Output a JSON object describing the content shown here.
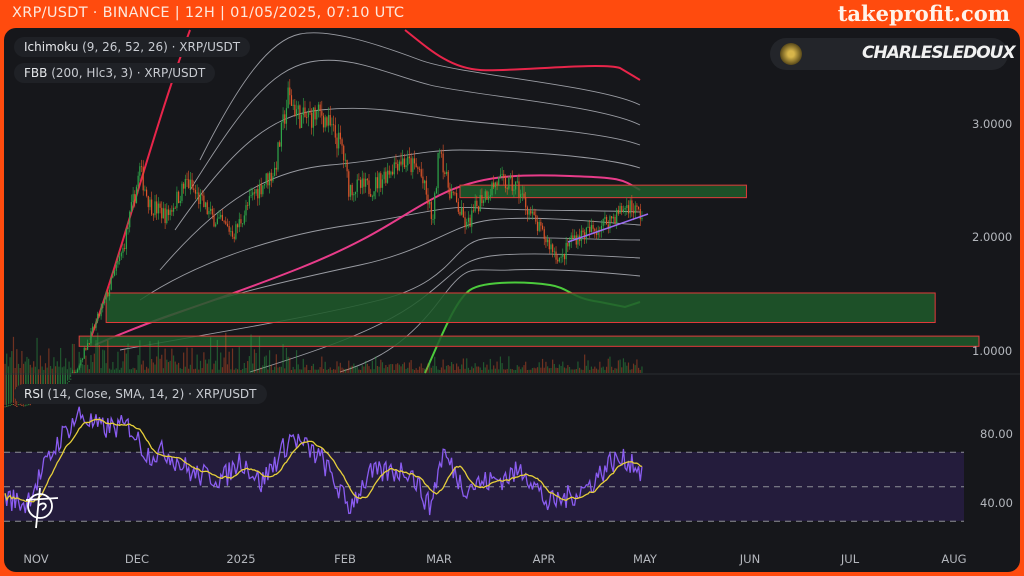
{
  "header": {
    "title": "XRP/USDT · BINANCE | 12H | 01/05/2025, 07:10 UTC",
    "brand": "takeprofit.com"
  },
  "author": {
    "name": "CHARLESLEDOUX"
  },
  "legends": {
    "ichimoku": {
      "name": "Ichimoku",
      "params": "(9, 26, 52, 26) · XRP/USDT"
    },
    "fbb": {
      "name": "FBB",
      "params": "(200, Hlc3, 3) · XRP/USDT"
    },
    "rsi": {
      "name": "RSI",
      "params": "(14, Close, SMA, 14, 2) · XRP/USDT"
    }
  },
  "colors": {
    "up": "#2fa84a",
    "down": "#e0552a",
    "upper_band": "#e8254a",
    "basis": "#e83c8a",
    "green_line": "#4ccb3c",
    "rsi": "#8a5cf0",
    "rsi_sma": "#e6cf3a",
    "zone_fill": "#1f5a2a",
    "zone_border": "#e23b3b",
    "trendline": "#9a6cf0"
  },
  "chart_data": [
    {
      "type": "candlestick",
      "title": "XRP/USDT 12H",
      "y_scale": "linear",
      "y_ticks": [
        "3.0000",
        "2.0000",
        "1.0000"
      ],
      "x_ticks": [
        "NOV",
        "DEC",
        "2025",
        "FEB",
        "MAR",
        "APR",
        "MAY",
        "JUN",
        "JUL",
        "AUG"
      ],
      "approx_close": [
        [
          "2024-10-24",
          0.52
        ],
        [
          "2024-11-08",
          0.56
        ],
        [
          "2024-11-15",
          0.9
        ],
        [
          "2024-11-22",
          1.4
        ],
        [
          "2024-11-28",
          1.9
        ],
        [
          "2024-12-03",
          2.6
        ],
        [
          "2024-12-06",
          2.3
        ],
        [
          "2024-12-11",
          2.2
        ],
        [
          "2024-12-17",
          2.5
        ],
        [
          "2024-12-24",
          2.2
        ],
        [
          "2024-12-31",
          2.05
        ],
        [
          "2025-01-06",
          2.4
        ],
        [
          "2025-01-12",
          2.6
        ],
        [
          "2025-01-16",
          3.25
        ],
        [
          "2025-01-20",
          3.05
        ],
        [
          "2025-01-26",
          3.1
        ],
        [
          "2025-02-01",
          2.8
        ],
        [
          "2025-02-03",
          2.45
        ],
        [
          "2025-02-10",
          2.45
        ],
        [
          "2025-02-18",
          2.7
        ],
        [
          "2025-02-24",
          2.6
        ],
        [
          "2025-02-28",
          2.15
        ],
        [
          "2025-03-02",
          2.85
        ],
        [
          "2025-03-04",
          2.5
        ],
        [
          "2025-03-10",
          2.1
        ],
        [
          "2025-03-14",
          2.35
        ],
        [
          "2025-03-19",
          2.5
        ],
        [
          "2025-03-25",
          2.45
        ],
        [
          "2025-03-31",
          2.1
        ],
        [
          "2025-04-07",
          1.8
        ],
        [
          "2025-04-10",
          2.0
        ],
        [
          "2025-04-17",
          2.08
        ],
        [
          "2025-04-23",
          2.2
        ],
        [
          "2025-04-27",
          2.3
        ],
        [
          "2025-05-01",
          2.2
        ]
      ],
      "zones": [
        {
          "from": "2025-03-08",
          "to": "2025-06-01",
          "low": 2.36,
          "high": 2.47
        },
        {
          "from": "2024-11-23",
          "to": "2025-07-27",
          "low": 1.26,
          "high": 1.52
        },
        {
          "from": "2024-11-15",
          "to": "2025-08-09",
          "low": 1.05,
          "high": 1.14
        }
      ]
    },
    {
      "type": "line",
      "title": "RSI",
      "y_ticks": [
        "80.00",
        "40.00"
      ],
      "levels": [
        70,
        50,
        30
      ],
      "rsi": [
        [
          "2024-10-24",
          44
        ],
        [
          "2024-10-30",
          40
        ],
        [
          "2024-11-09",
          77
        ],
        [
          "2024-11-15",
          92
        ],
        [
          "2024-11-21",
          84
        ],
        [
          "2024-11-30",
          85
        ],
        [
          "2024-12-05",
          69
        ],
        [
          "2024-12-11",
          70
        ],
        [
          "2024-12-19",
          57
        ],
        [
          "2024-12-28",
          55
        ],
        [
          "2025-01-02",
          66
        ],
        [
          "2025-01-08",
          52
        ],
        [
          "2025-01-17",
          79
        ],
        [
          "2025-01-26",
          66
        ],
        [
          "2025-02-03",
          38
        ],
        [
          "2025-02-09",
          57
        ],
        [
          "2025-02-21",
          60
        ],
        [
          "2025-02-27",
          38
        ],
        [
          "2025-03-03",
          70
        ],
        [
          "2025-03-09",
          50
        ],
        [
          "2025-03-21",
          55
        ],
        [
          "2025-03-27",
          60
        ],
        [
          "2025-04-03",
          40
        ],
        [
          "2025-04-09",
          44
        ],
        [
          "2025-04-15",
          50
        ],
        [
          "2025-04-22",
          65
        ],
        [
          "2025-04-28",
          65
        ],
        [
          "2025-05-01",
          58
        ]
      ]
    }
  ]
}
